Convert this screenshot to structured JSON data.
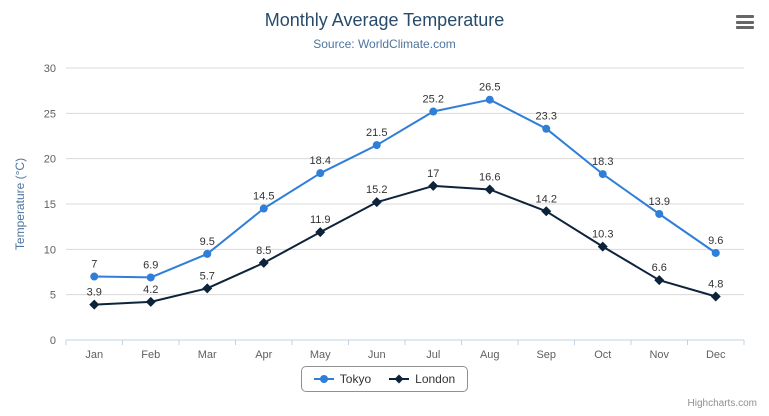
{
  "chart_data": {
    "type": "line",
    "title": "Monthly Average Temperature",
    "subtitle": "Source: WorldClimate.com",
    "categories": [
      "Jan",
      "Feb",
      "Mar",
      "Apr",
      "May",
      "Jun",
      "Jul",
      "Aug",
      "Sep",
      "Oct",
      "Nov",
      "Dec"
    ],
    "series": [
      {
        "name": "Tokyo",
        "color": "#2f7ed8",
        "marker": "circle",
        "values": [
          7,
          6.9,
          9.5,
          14.5,
          18.4,
          21.5,
          25.2,
          26.5,
          23.3,
          18.3,
          13.9,
          9.6
        ]
      },
      {
        "name": "London",
        "color": "#0d233a",
        "marker": "diamond",
        "values": [
          3.9,
          4.2,
          5.7,
          8.5,
          11.9,
          15.2,
          17,
          16.6,
          14.2,
          10.3,
          6.6,
          4.8
        ]
      }
    ],
    "xlabel": "",
    "ylabel": "Temperature (°C)",
    "ylim": [
      0,
      30
    ],
    "ytick": 5,
    "grid": true,
    "legend_position": "bottom"
  },
  "colors": {
    "title": "#274b6d",
    "subtitle": "#4d759e",
    "axis_title": "#4d759e",
    "axis_label": "#606060",
    "data_label": "#333333",
    "grid": "#d8d8d8",
    "axis_line": "#c0d0e0",
    "legend_border": "#909090",
    "credits": "#909090",
    "menu_icon": "#666666"
  },
  "icons": {
    "menu": "hamburger-icon"
  },
  "credits": "Highcharts.com"
}
